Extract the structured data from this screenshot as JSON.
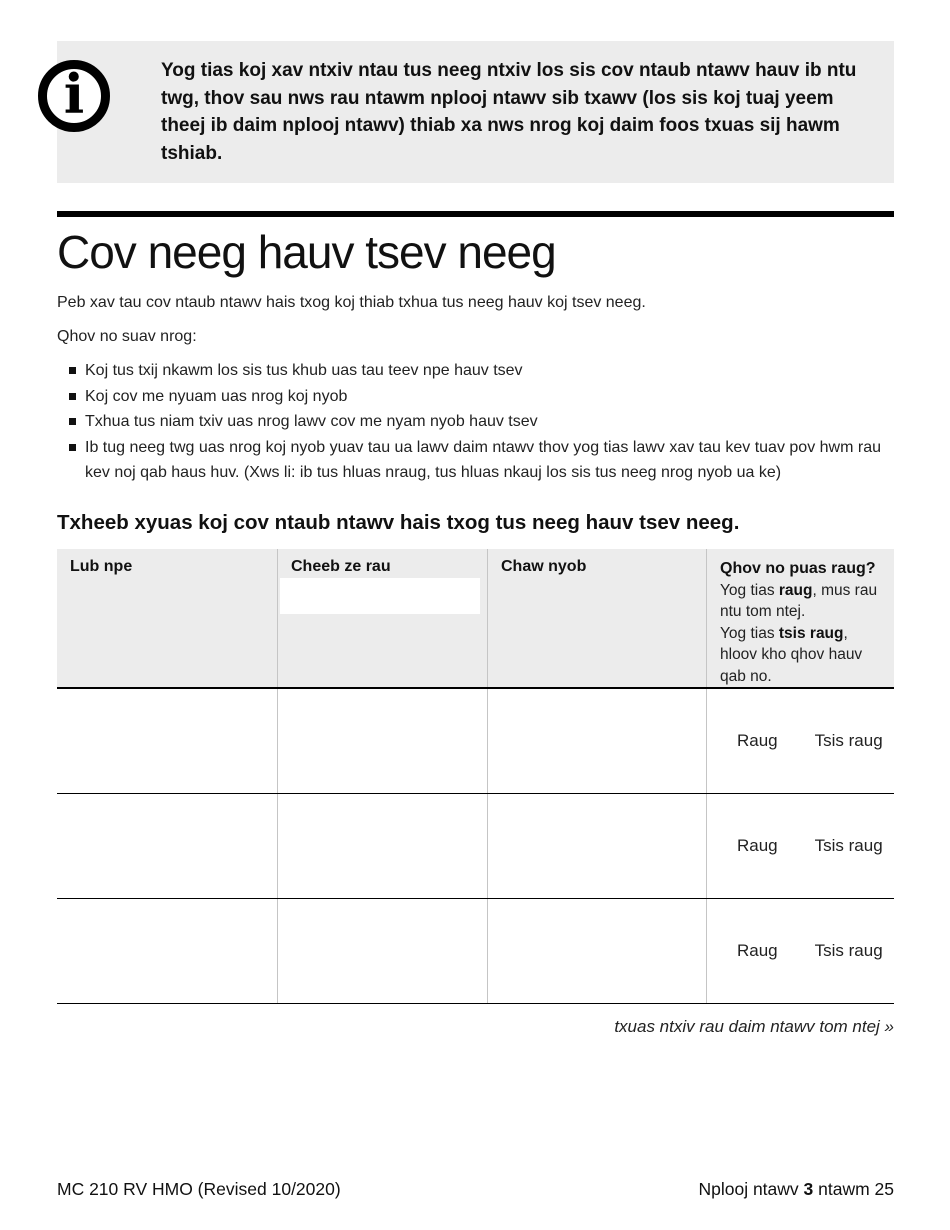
{
  "info": {
    "icon": "info-icon",
    "icon_glyph": "i",
    "text": "Yog tias koj xav ntxiv ntau tus neeg ntxiv los sis cov ntaub ntawv hauv ib ntu twg, thov sau nws rau ntawm nplooj ntawv sib txawv (los sis koj tuaj yeem theej ib daim nplooj ntawv) thiab xa nws nrog koj daim foos txuas sij hawm tshiab."
  },
  "section": {
    "title": "Cov neeg hauv tsev neeg",
    "intro": "Peb xav tau cov ntaub ntawv hais txog koj thiab txhua tus neeg hauv koj tsev neeg.",
    "list_intro": "Qhov no suav nrog:",
    "bullets": [
      "Koj tus txij nkawm los sis tus khub uas tau teev npe hauv tsev",
      "Koj cov me nyuam uas nrog koj nyob",
      "Txhua tus niam txiv uas nrog lawv cov me nyam nyob hauv tsev",
      "Ib tug neeg twg uas nrog koj nyob yuav tau ua lawv daim ntawv thov yog tias lawv xav tau kev tuav pov hwm rau kev noj qab haus huv. (Xws li: ib tus hluas nraug, tus hluas nkauj los sis tus neeg nrog nyob ua ke)"
    ]
  },
  "table": {
    "heading": "Txheeb xyuas koj cov ntaub ntawv hais txog tus neeg hauv tsev neeg.",
    "columns": [
      "Lub npe",
      "Cheeb ze rau",
      "Chaw nyob"
    ],
    "status": {
      "title": "Qhov no puas raug?",
      "note1": {
        "pre": "Yog tias ",
        "bold": "raug",
        "post": ", mus rau ntu tom ntej."
      },
      "note2": {
        "pre": "Yog tias ",
        "bold": "tsis raug",
        "post": ", hloov kho qhov hauv qab no."
      }
    },
    "rows": [
      {
        "yes": "Raug",
        "no": "Tsis raug"
      },
      {
        "yes": "Raug",
        "no": "Tsis raug"
      },
      {
        "yes": "Raug",
        "no": "Tsis raug"
      }
    ],
    "continuation": "txuas ntxiv rau daim ntawv tom ntej »"
  },
  "footer": {
    "left": "MC 210 RV HMO (Revised 10/2020)",
    "right_pre": "Nplooj ntawv ",
    "right_bold": "3",
    "right_post": " ntawm 25"
  },
  "colors": {
    "callout_bg": "#ececec",
    "table_header_bg": "#ececec",
    "divider": "#c5c5c5",
    "rule": "#000000",
    "text": "#1a1a1a"
  }
}
